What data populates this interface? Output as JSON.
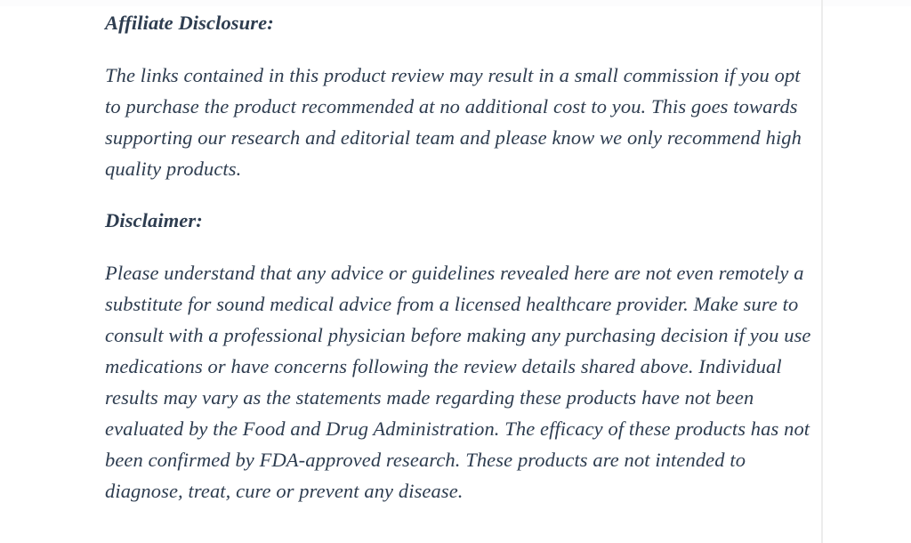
{
  "page": {
    "background_color": "#ffffff",
    "text_color": "#2e3d50",
    "edge_line_color": "#ececec",
    "sections": [
      {
        "heading": "Affiliate Disclosure:",
        "body": "The links contained in this product review may result in a small commission if you opt to purchase the product recommended at no additional cost to you. This goes towards supporting our research and editorial team and please know we only recommend high quality products."
      },
      {
        "heading": "Disclaimer:",
        "body": "Please understand that any advice or guidelines revealed here are not even remotely a substitute for sound medical advice from a licensed healthcare provider. Make sure to consult with a professional physician before making any purchasing decision if you use medications or have concerns following the review details shared above. Individual results may vary as the statements made regarding these products have not been evaluated by the Food and Drug Administration. The efficacy of these products has not been confirmed by FDA-approved research. These products are not intended to diagnose, treat, cure or prevent any disease."
      }
    ]
  }
}
